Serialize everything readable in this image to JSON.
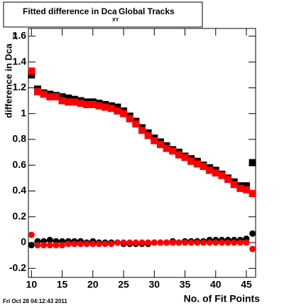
{
  "chart_data": {
    "type": "scatter",
    "title": "Fitted difference in Dca",
    "title_subscript": "XY",
    "title_suffix": "Global Tracks",
    "y_label": "difference in Dca",
    "y_label_subscript": "XY",
    "x_label": "No. of Fit Points",
    "timestamp": "Fri Oct 28 04:12:43 2011",
    "x": [
      10,
      11,
      12,
      13,
      14,
      15,
      16,
      17,
      18,
      19,
      20,
      21,
      22,
      23,
      24,
      25,
      26,
      27,
      28,
      29,
      30,
      31,
      32,
      33,
      34,
      35,
      36,
      37,
      38,
      39,
      40,
      41,
      42,
      43,
      44,
      45,
      46
    ],
    "series": [
      {
        "color": "#000000",
        "marker": "square",
        "values": [
          1.3,
          1.19,
          1.16,
          1.15,
          1.14,
          1.13,
          1.12,
          1.11,
          1.1,
          1.09,
          1.09,
          1.08,
          1.07,
          1.06,
          1.05,
          1.02,
          0.98,
          0.94,
          0.89,
          0.85,
          0.81,
          0.78,
          0.75,
          0.72,
          0.7,
          0.67,
          0.65,
          0.63,
          0.6,
          0.58,
          0.56,
          0.53,
          0.5,
          0.47,
          0.44,
          0.44,
          0.62
        ]
      },
      {
        "color": "#ff0000",
        "marker": "square",
        "values": [
          1.33,
          1.17,
          1.15,
          1.13,
          1.13,
          1.1,
          1.09,
          1.09,
          1.08,
          1.07,
          1.07,
          1.06,
          1.05,
          1.04,
          1.02,
          1.0,
          0.96,
          0.92,
          0.87,
          0.83,
          0.79,
          0.76,
          0.73,
          0.71,
          0.68,
          0.66,
          0.63,
          0.61,
          0.59,
          0.56,
          0.54,
          0.52,
          0.49,
          0.45,
          0.42,
          0.41,
          0.38
        ]
      },
      {
        "color": "#000000",
        "marker": "circle",
        "values": [
          -0.02,
          0.01,
          0.01,
          0.02,
          0.01,
          0.01,
          0.01,
          0.01,
          0.01,
          0.0,
          0.01,
          0.0,
          0.0,
          0.0,
          0.0,
          -0.01,
          -0.01,
          -0.01,
          -0.01,
          -0.01,
          0.0,
          0.0,
          0.0,
          0.01,
          0.0,
          0.01,
          0.01,
          0.01,
          0.01,
          0.02,
          0.02,
          0.02,
          0.02,
          0.02,
          0.02,
          0.03,
          0.07
        ]
      },
      {
        "color": "#ff0000",
        "marker": "circle",
        "values": [
          0.06,
          -0.02,
          -0.02,
          -0.02,
          -0.02,
          -0.02,
          -0.01,
          -0.01,
          -0.01,
          -0.01,
          -0.01,
          -0.01,
          -0.01,
          -0.01,
          0.0,
          0.0,
          0.0,
          0.0,
          0.0,
          0.0,
          0.0,
          0.0,
          0.0,
          0.0,
          0.0,
          0.0,
          0.0,
          0.0,
          0.0,
          0.0,
          0.0,
          0.0,
          0.0,
          0.0,
          0.0,
          0.0,
          -0.05
        ]
      }
    ],
    "xlim": [
      9.5,
      46.5
    ],
    "ylim": [
      -0.27,
      1.66
    ],
    "xticks": [
      10,
      15,
      20,
      25,
      30,
      35,
      40,
      45
    ],
    "yticks": [
      -0.2,
      0,
      0.2,
      0.4,
      0.6,
      0.8,
      1,
      1.2,
      1.4,
      1.6
    ]
  }
}
